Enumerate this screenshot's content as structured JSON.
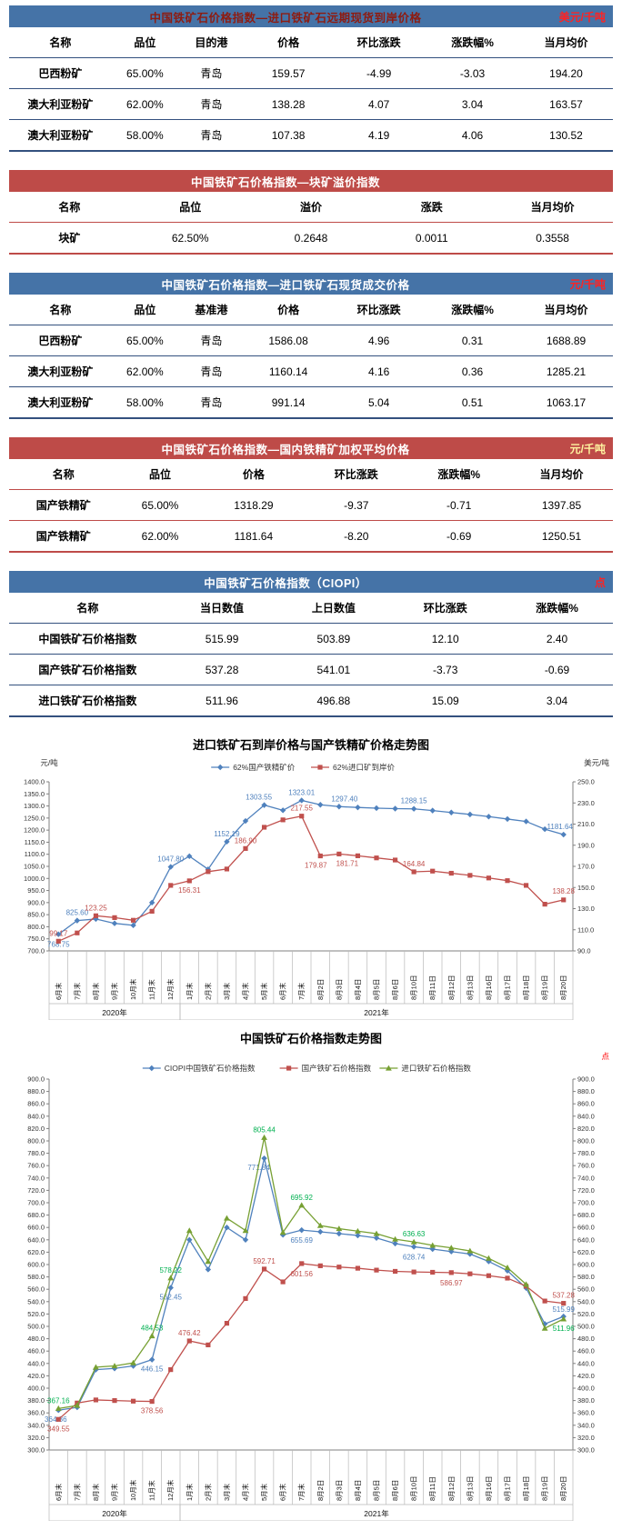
{
  "tables": [
    {
      "band": {
        "title": "中国铁矿石价格指数—进口铁矿石远期现货到岸价格",
        "unit": "美元/千吨"
      },
      "columns": [
        "名称",
        "品位",
        "目的港",
        "价格",
        "环比涨跌",
        "涨跌幅%",
        "当月均价"
      ],
      "rows": [
        [
          "巴西粉矿",
          "65.00%",
          "青岛",
          "159.57",
          "-4.99",
          "-3.03",
          "194.20"
        ],
        [
          "澳大利亚粉矿",
          "62.00%",
          "青岛",
          "138.28",
          "4.07",
          "3.04",
          "163.57"
        ],
        [
          "澳大利亚粉矿",
          "58.00%",
          "青岛",
          "107.38",
          "4.19",
          "4.06",
          "130.52"
        ]
      ]
    },
    {
      "band": {
        "title": "中国铁矿石价格指数—块矿溢价指数",
        "unit": ""
      },
      "columns": [
        "名称",
        "品位",
        "溢价",
        "涨跌",
        "当月均价"
      ],
      "rows": [
        [
          "块矿",
          "62.50%",
          "0.2648",
          "0.0011",
          "0.3558"
        ]
      ]
    },
    {
      "band": {
        "title": "中国铁矿石价格指数—进口铁矿石现货成交价格",
        "unit": "元/千吨"
      },
      "columns": [
        "名称",
        "品位",
        "基准港",
        "价格",
        "环比涨跌",
        "涨跌幅%",
        "当月均价"
      ],
      "rows": [
        [
          "巴西粉矿",
          "65.00%",
          "青岛",
          "1586.08",
          "4.96",
          "0.31",
          "1688.89"
        ],
        [
          "澳大利亚粉矿",
          "62.00%",
          "青岛",
          "1160.14",
          "4.16",
          "0.36",
          "1285.21"
        ],
        [
          "澳大利亚粉矿",
          "58.00%",
          "青岛",
          "991.14",
          "5.04",
          "0.51",
          "1063.17"
        ]
      ]
    },
    {
      "band": {
        "title": "中国铁矿石价格指数—国内铁精矿加权平均价格",
        "unit": "元/千吨"
      },
      "columns": [
        "名称",
        "品位",
        "价格",
        "环比涨跌",
        "涨跌幅%",
        "当月均价"
      ],
      "rows": [
        [
          "国产铁精矿",
          "65.00%",
          "1318.29",
          "-9.37",
          "-0.71",
          "1397.85"
        ],
        [
          "国产铁精矿",
          "62.00%",
          "1181.64",
          "-8.20",
          "-0.69",
          "1250.51"
        ]
      ]
    },
    {
      "band": {
        "title": "中国铁矿石价格指数（CIOPI）",
        "unit": "点"
      },
      "columns": [
        "名称",
        "当日数值",
        "上日数值",
        "环比涨跌",
        "涨跌幅%"
      ],
      "rows": [
        [
          "中国铁矿石价格指数",
          "515.99",
          "503.89",
          "12.10",
          "2.40"
        ],
        [
          "国产铁矿石价格指数",
          "537.28",
          "541.01",
          "-3.73",
          "-0.69"
        ],
        [
          "进口铁矿石价格指数",
          "511.96",
          "496.88",
          "15.09",
          "3.04"
        ]
      ]
    }
  ],
  "chart_data": [
    {
      "type": "line",
      "title": "进口铁矿石到岸价格与国产铁精矿价格走势图",
      "legend_position": "top",
      "grid": false,
      "categories": [
        "6月末",
        "7月末",
        "8月末",
        "9月末",
        "10月末",
        "11月末",
        "12月末",
        "1月末",
        "2月末",
        "3月末",
        "4月末",
        "5月末",
        "6月末",
        "7月末",
        "8月2日",
        "8月3日",
        "8月4日",
        "8月5日",
        "8月6日",
        "8月10日",
        "8月11日",
        "8月12日",
        "8月13日",
        "8月16日",
        "8月17日",
        "8月18日",
        "8月19日",
        "8月20日"
      ],
      "year_groups": [
        {
          "label": "2020年",
          "from": 0,
          "to": 6
        },
        {
          "label": "2021年",
          "from": 7,
          "to": 27
        }
      ],
      "left_axis": {
        "min": 700,
        "max": 1400,
        "step": 50,
        "decimals": 1,
        "unit": "元/吨"
      },
      "right_axis": {
        "min": 90,
        "max": 250,
        "step": 20,
        "decimals": 1,
        "unit": "美元/吨"
      },
      "series": [
        {
          "name": "62%国产铁精矿价",
          "color": "#4F81BD",
          "marker": "diamond",
          "axis": "left",
          "values": [
            768.75,
            825.6,
            832,
            814,
            806,
            900,
            1047.8,
            1092,
            1038,
            1152.19,
            1238,
            1303.55,
            1282,
            1323.01,
            1305,
            1297.4,
            1294,
            1291,
            1289,
            1288.15,
            1281,
            1273,
            1265,
            1256,
            1246,
            1236,
            1204,
            1181.64
          ],
          "labels": {
            "0": {
              "t": "768.75",
              "dy": 14
            },
            "1": {
              "t": "825.60",
              "dy": -6
            },
            "6": {
              "t": "1047.80",
              "dy": -6
            },
            "9": {
              "t": "1152.19",
              "dy": -6
            },
            "11": {
              "t": "1303.55",
              "dy": -6,
              "dx": -6
            },
            "13": {
              "t": "1323.01",
              "dy": -6
            },
            "15": {
              "t": "1297.40",
              "dy": -6,
              "dx": 6
            },
            "19": {
              "t": "1288.15",
              "dy": -6
            },
            "27": {
              "t": "1181.64",
              "dy": -6,
              "dx": -4
            }
          }
        },
        {
          "name": "62%进口矿到岸价",
          "color": "#C0504D",
          "marker": "square",
          "axis": "right",
          "values": [
            99.17,
            107,
            123.25,
            121.5,
            119,
            127.5,
            152,
            156.31,
            165,
            167.5,
            186.9,
            207,
            214,
            217.55,
            179.87,
            181.71,
            180,
            178,
            176,
            164.84,
            165.5,
            163.5,
            161.5,
            159,
            156.5,
            152,
            134.21,
            138.28
          ],
          "labels": {
            "0": {
              "t": "99.17",
              "dy": -6
            },
            "2": {
              "t": "123.25",
              "dy": -6
            },
            "7": {
              "t": "156.31",
              "dy": 13
            },
            "10": {
              "t": "186.90",
              "dy": -6
            },
            "13": {
              "t": "217.55",
              "dy": -6
            },
            "14": {
              "t": "179.87",
              "dy": 13,
              "dx": -5
            },
            "15": {
              "t": "181.71",
              "dy": 13,
              "dx": 9
            },
            "19": {
              "t": "164.84",
              "dy": -6
            },
            "27": {
              "t": "138.28",
              "dy": -7
            }
          }
        }
      ]
    },
    {
      "type": "line",
      "title": "中国铁矿石价格指数走势图",
      "legend_position": "top",
      "grid": false,
      "categories": [
        "6月末",
        "7月末",
        "8月末",
        "9月末",
        "10月末",
        "11月末",
        "12月末",
        "1月末",
        "2月末",
        "3月末",
        "4月末",
        "5月末",
        "6月末",
        "7月末",
        "8月2日",
        "8月3日",
        "8月4日",
        "8月5日",
        "8月6日",
        "8月10日",
        "8月11日",
        "8月12日",
        "8月13日",
        "8月16日",
        "8月17日",
        "8月18日",
        "8月19日",
        "8月20日"
      ],
      "year_groups": [
        {
          "label": "2020年",
          "from": 0,
          "to": 6
        },
        {
          "label": "2021年",
          "from": 7,
          "to": 27
        }
      ],
      "left_axis": {
        "min": 300,
        "max": 900,
        "step": 20,
        "decimals": 1
      },
      "right_axis": {
        "min": 300,
        "max": 900,
        "step": 20,
        "decimals": 1,
        "unit": "点",
        "unit_color": "#FF0000"
      },
      "series": [
        {
          "name": "CIOPI中国铁矿石价格指数",
          "color": "#4F81BD",
          "marker": "diamond",
          "axis": "left",
          "values": [
            364.36,
            369,
            430,
            432,
            436,
            446.15,
            562.45,
            640,
            592,
            660,
            640,
            771.84,
            648,
            655.69,
            653,
            650,
            647,
            643,
            634,
            628.74,
            625,
            621,
            617,
            605,
            590,
            562,
            503.89,
            515.99
          ],
          "labels": {
            "0": {
              "t": "364.36",
              "dy": 13,
              "dx": -3
            },
            "5": {
              "t": "446.15",
              "dy": 13
            },
            "6": {
              "t": "562.45",
              "dy": 13
            },
            "11": {
              "t": "771.84",
              "dy": 13,
              "dx": -6
            },
            "13": {
              "t": "655.69",
              "dy": 14
            },
            "19": {
              "t": "628.74",
              "dy": 14
            },
            "27": {
              "t": "515.99",
              "dy": -5
            }
          }
        },
        {
          "name": "国产铁矿石价格指数",
          "color": "#C0504D",
          "marker": "square",
          "axis": "left",
          "values": [
            349.55,
            376,
            381,
            380,
            379,
            378.56,
            430,
            476.42,
            470,
            505,
            545,
            592.71,
            572,
            601.56,
            598,
            596,
            594,
            591,
            589,
            588,
            587.5,
            586.97,
            585,
            582,
            578,
            565,
            541.01,
            537.28
          ],
          "labels": {
            "0": {
              "t": "349.55",
              "dy": 13
            },
            "5": {
              "t": "378.56",
              "dy": 13
            },
            "7": {
              "t": "476.42",
              "dy": -6
            },
            "11": {
              "t": "592.71",
              "dy": -6
            },
            "13": {
              "t": "601.56",
              "dy": 14
            },
            "21": {
              "t": "586.97",
              "dy": 14
            },
            "27": {
              "t": "537.28",
              "dy": -6
            }
          }
        },
        {
          "name": "进口铁矿石价格指数",
          "color": "#77A033",
          "marker": "triangle",
          "axis": "left",
          "label_color": "#00B050",
          "values": [
            367.16,
            372,
            434,
            436,
            441,
            484.53,
            578.22,
            655,
            605,
            675,
            655,
            805.44,
            652,
            695.92,
            663,
            658,
            654,
            650,
            641,
            636.63,
            631,
            627,
            622,
            610,
            595,
            568,
            496.88,
            511.96
          ],
          "labels": {
            "0": {
              "t": "367.16",
              "dy": -6
            },
            "5": {
              "t": "484.53",
              "dy": -6
            },
            "6": {
              "t": "578.22",
              "dy": -6
            },
            "11": {
              "t": "805.44",
              "dy": -6
            },
            "13": {
              "t": "695.92",
              "dy": -6
            },
            "19": {
              "t": "636.63",
              "dy": -6
            },
            "27": {
              "t": "511.96",
              "dy": 13
            }
          }
        }
      ]
    }
  ]
}
